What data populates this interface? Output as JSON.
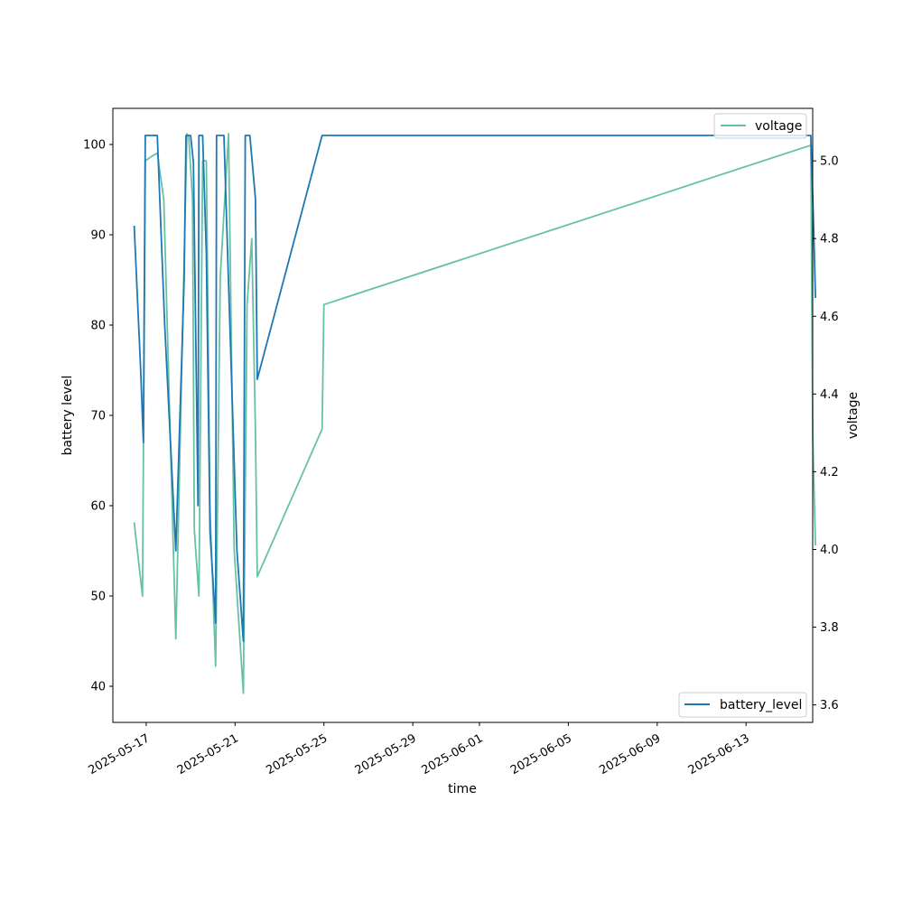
{
  "chart_data": {
    "type": "line",
    "xlabel": "time",
    "ylabel_left": "battery level",
    "ylabel_right": "voltage",
    "x_ticks": [
      "2025-05-17",
      "2025-05-21",
      "2025-05-25",
      "2025-05-29",
      "2025-06-01",
      "2025-06-05",
      "2025-06-09",
      "2025-06-13"
    ],
    "x_range": [
      "2025-05-15T12:00",
      "2025-06-16T00:00"
    ],
    "left_axis": {
      "ylim": [
        36,
        104
      ],
      "ticks": [
        40,
        50,
        60,
        70,
        80,
        90,
        100
      ]
    },
    "right_axis": {
      "ylim": [
        3.555,
        5.135
      ],
      "ticks": [
        3.6,
        3.8,
        4.0,
        4.2,
        4.4,
        4.6,
        4.8,
        5.0
      ]
    },
    "grid": false,
    "series": [
      {
        "name": "battery_level",
        "axis": "left",
        "color": "#1f77b4",
        "legend": "lower-right",
        "points": [
          [
            "2025-05-16T11:00",
            91
          ],
          [
            "2025-05-16T18:00",
            75
          ],
          [
            "2025-05-16T21:00",
            67
          ],
          [
            "2025-05-16T23:00",
            101
          ],
          [
            "2025-05-17T12:00",
            101
          ],
          [
            "2025-05-17T20:00",
            80
          ],
          [
            "2025-05-18T08:00",
            55
          ],
          [
            "2025-05-18T17:00",
            85
          ],
          [
            "2025-05-18T19:00",
            101
          ],
          [
            "2025-05-19T00:00",
            101
          ],
          [
            "2025-05-19T03:00",
            98
          ],
          [
            "2025-05-19T08:00",
            60
          ],
          [
            "2025-05-19T09:00",
            101
          ],
          [
            "2025-05-19T13:00",
            101
          ],
          [
            "2025-05-19T17:00",
            88
          ],
          [
            "2025-05-19T21:00",
            57
          ],
          [
            "2025-05-20T03:00",
            47
          ],
          [
            "2025-05-20T04:00",
            101
          ],
          [
            "2025-05-20T12:00",
            101
          ],
          [
            "2025-05-21T02:00",
            55
          ],
          [
            "2025-05-21T09:00",
            45
          ],
          [
            "2025-05-21T11:00",
            101
          ],
          [
            "2025-05-21T16:00",
            101
          ],
          [
            "2025-05-21T22:00",
            94
          ],
          [
            "2025-05-22T00:00",
            74
          ],
          [
            "2025-05-24T22:00",
            101
          ],
          [
            "2025-06-15T22:00",
            101
          ],
          [
            "2025-06-16T01:00",
            91
          ],
          [
            "2025-06-16T03:00",
            83
          ]
        ]
      },
      {
        "name": "voltage",
        "axis": "right",
        "color": "#66c2a5",
        "legend": "upper-right",
        "points": [
          [
            "2025-05-16T11:00",
            4.07
          ],
          [
            "2025-05-16T20:00",
            3.88
          ],
          [
            "2025-05-16T23:00",
            5.0
          ],
          [
            "2025-05-17T05:00",
            5.01
          ],
          [
            "2025-05-17T12:00",
            5.02
          ],
          [
            "2025-05-17T19:00",
            4.9
          ],
          [
            "2025-05-18T08:00",
            3.77
          ],
          [
            "2025-05-18T20:00",
            5.07
          ],
          [
            "2025-05-18T22:00",
            5.06
          ],
          [
            "2025-05-19T02:00",
            4.9
          ],
          [
            "2025-05-19T04:00",
            4.05
          ],
          [
            "2025-05-19T09:00",
            3.88
          ],
          [
            "2025-05-19T13:00",
            5.0
          ],
          [
            "2025-05-19T17:00",
            5.0
          ],
          [
            "2025-05-19T21:00",
            4.1
          ],
          [
            "2025-05-20T03:00",
            3.7
          ],
          [
            "2025-05-20T08:00",
            4.7
          ],
          [
            "2025-05-20T17:00",
            5.07
          ],
          [
            "2025-05-20T23:00",
            4.0
          ],
          [
            "2025-05-21T09:00",
            3.63
          ],
          [
            "2025-05-21T13:00",
            4.63
          ],
          [
            "2025-05-21T18:00",
            4.8
          ],
          [
            "2025-05-21T22:00",
            4.3
          ],
          [
            "2025-05-22T00:00",
            3.93
          ],
          [
            "2025-05-24T22:00",
            4.31
          ],
          [
            "2025-05-25T00:00",
            4.63
          ],
          [
            "2025-06-15T22:00",
            5.04
          ],
          [
            "2025-06-16T00:00",
            4.3
          ],
          [
            "2025-06-16T02:00",
            4.1
          ],
          [
            "2025-06-16T03:00",
            4.01
          ]
        ]
      }
    ]
  }
}
